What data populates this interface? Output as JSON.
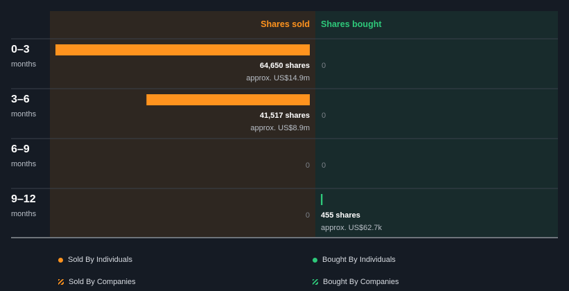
{
  "colors": {
    "sold": "#ff931e",
    "bought": "#2ec87a",
    "sold_panel": "#2e2721",
    "bought_panel": "#182b2c",
    "background": "#151b24"
  },
  "chart_data": {
    "type": "bar",
    "orientation": "horizontal-diverging",
    "column_headers": {
      "sold": "Shares sold",
      "bought": "Shares bought"
    },
    "categories": [
      {
        "label": "0–3",
        "sublabel": "months"
      },
      {
        "label": "3–6",
        "sublabel": "months"
      },
      {
        "label": "6–9",
        "sublabel": "months"
      },
      {
        "label": "9–12",
        "sublabel": "months"
      }
    ],
    "sold": {
      "values": [
        64650,
        41517,
        0,
        0
      ],
      "labels": [
        "64,650 shares",
        "41,517 shares",
        "0",
        "0"
      ],
      "approx": [
        "approx. US$14.9m",
        "approx. US$8.9m",
        "",
        ""
      ]
    },
    "bought": {
      "values": [
        0,
        0,
        0,
        455
      ],
      "labels": [
        "0",
        "0",
        "0",
        "455 shares"
      ],
      "approx": [
        "",
        "",
        "",
        "approx. US$62.7k"
      ]
    },
    "xlim": [
      0,
      64650
    ],
    "legend": {
      "placement": "bottom",
      "items": [
        {
          "label": "Sold By Individuals",
          "marker": "dot",
          "color": "#ff931e"
        },
        {
          "label": "Bought By Individuals",
          "marker": "dot",
          "color": "#2ec87a"
        },
        {
          "label": "Sold By Companies",
          "marker": "hatch",
          "color": "#ff931e"
        },
        {
          "label": "Bought By Companies",
          "marker": "hatch",
          "color": "#2ec87a"
        }
      ]
    }
  }
}
